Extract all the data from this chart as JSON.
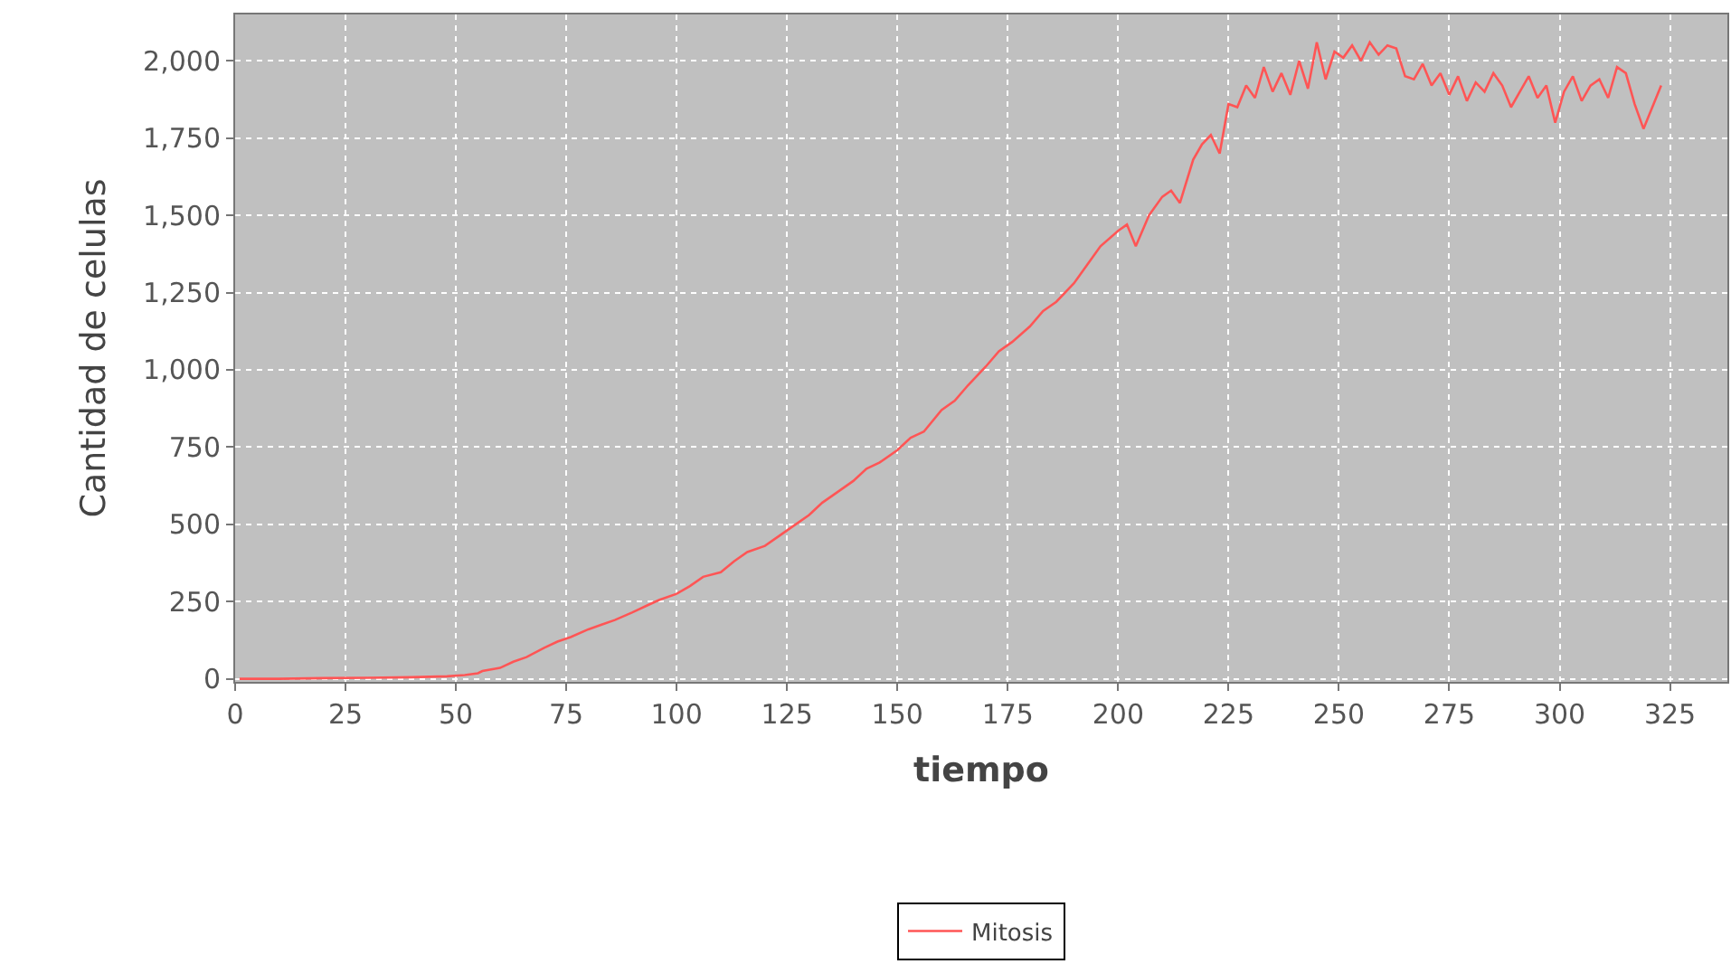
{
  "chart_data": {
    "type": "line",
    "xlabel": "tiempo",
    "ylabel": "Cantidad de celulas",
    "xlim": [
      0,
      338
    ],
    "ylim": [
      -10,
      2150
    ],
    "xticks": [
      0,
      25,
      50,
      75,
      100,
      125,
      150,
      175,
      200,
      225,
      250,
      275,
      300,
      325
    ],
    "yticks": [
      0,
      {
        "value": 250,
        "label": "250"
      },
      {
        "value": 500,
        "label": "500"
      },
      {
        "value": 750,
        "label": "750"
      },
      {
        "value": 1000,
        "label": "1,000"
      },
      {
        "value": 1250,
        "label": "1,250"
      },
      {
        "value": 1500,
        "label": "1,500"
      },
      {
        "value": 1750,
        "label": "1,750"
      },
      {
        "value": 2000,
        "label": "2,000"
      }
    ],
    "grid": true,
    "legend": "bottom",
    "marker": "none",
    "line_style": "solid",
    "series": [
      {
        "name": "Mitosis",
        "color": "#ff5555",
        "x": [
          1,
          10,
          20,
          30,
          40,
          48,
          52,
          55,
          56,
          60,
          63,
          66,
          70,
          73,
          76,
          80,
          83,
          86,
          90,
          93,
          96,
          100,
          103,
          106,
          110,
          113,
          116,
          120,
          123,
          126,
          130,
          133,
          136,
          140,
          143,
          146,
          150,
          153,
          156,
          160,
          163,
          166,
          170,
          173,
          176,
          180,
          183,
          186,
          190,
          193,
          196,
          200,
          202,
          204,
          207,
          210,
          212,
          214,
          217,
          219,
          221,
          223,
          225,
          227,
          229,
          231,
          233,
          235,
          237,
          239,
          241,
          243,
          245,
          247,
          249,
          251,
          253,
          255,
          257,
          259,
          261,
          263,
          265,
          267,
          269,
          271,
          273,
          275,
          277,
          279,
          281,
          283,
          285,
          287,
          289,
          291,
          293,
          295,
          297,
          299,
          301,
          303,
          305,
          307,
          309,
          311,
          313,
          315,
          317,
          319,
          321,
          323
        ],
        "values": [
          0,
          0,
          2,
          3,
          5,
          8,
          12,
          18,
          25,
          35,
          55,
          70,
          100,
          120,
          135,
          160,
          175,
          190,
          215,
          235,
          255,
          275,
          300,
          330,
          345,
          380,
          410,
          430,
          460,
          490,
          530,
          570,
          600,
          640,
          680,
          700,
          740,
          780,
          800,
          870,
          900,
          950,
          1010,
          1060,
          1090,
          1140,
          1190,
          1220,
          1280,
          1340,
          1400,
          1450,
          1470,
          1400,
          1500,
          1560,
          1580,
          1540,
          1680,
          1730,
          1760,
          1700,
          1860,
          1850,
          1920,
          1880,
          1980,
          1900,
          1960,
          1890,
          2000,
          1910,
          2060,
          1940,
          2030,
          2010,
          2050,
          2000,
          2060,
          2020,
          2050,
          2040,
          1950,
          1940,
          1990,
          1920,
          1960,
          1890,
          1950,
          1870,
          1930,
          1900,
          1960,
          1920,
          1850,
          1900,
          1950,
          1880,
          1920,
          1800,
          1900,
          1950,
          1870,
          1920,
          1940,
          1880,
          1980,
          1960,
          1860,
          1780,
          1850,
          1920
        ]
      }
    ]
  }
}
